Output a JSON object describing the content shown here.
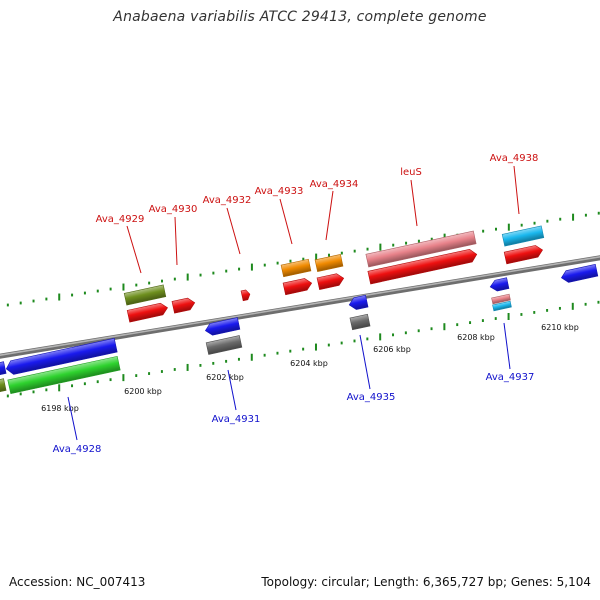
{
  "title": "Anabaena variabilis ATCC 29413, complete genome",
  "footer": {
    "accession": "Accession: NC_007413",
    "summary": "Topology: circular; Length: 6,365,727 bp; Genes: 5,104"
  },
  "colors": {
    "axis": "#8a8a8a",
    "tick_marks": "#1e8a1e",
    "forward_label": "#cc1111",
    "reverse_label": "#1111cc"
  },
  "ticks": [
    {
      "label": "6198 kbp"
    },
    {
      "label": "6200 kbp"
    },
    {
      "label": "6202 kbp"
    },
    {
      "label": "6204 kbp"
    },
    {
      "label": "6206 kbp"
    },
    {
      "label": "6208 kbp"
    },
    {
      "label": "6210 kbp"
    }
  ],
  "genes": [
    {
      "label": "Ava_4928",
      "strand": "reverse"
    },
    {
      "label": "Ava_4929",
      "strand": "forward"
    },
    {
      "label": "Ava_4930",
      "strand": "forward"
    },
    {
      "label": "Ava_4931",
      "strand": "reverse"
    },
    {
      "label": "Ava_4932",
      "strand": "forward"
    },
    {
      "label": "Ava_4933",
      "strand": "forward"
    },
    {
      "label": "Ava_4934",
      "strand": "forward"
    },
    {
      "label": "Ava_4935",
      "strand": "reverse"
    },
    {
      "label": "leuS",
      "strand": "forward"
    },
    {
      "label": "Ava_4937",
      "strand": "reverse"
    },
    {
      "label": "Ava_4938",
      "strand": "forward"
    }
  ]
}
